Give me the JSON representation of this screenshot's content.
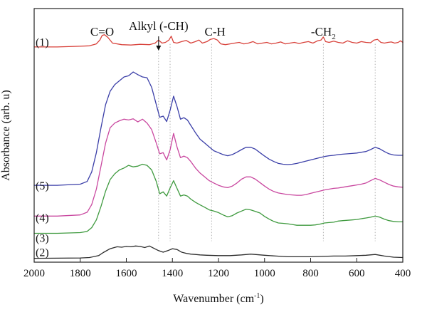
{
  "chart_data": {
    "type": "line",
    "xlabel": "Wavenumber (cm",
    "xlabel_sup": "-1",
    "xlabel_end": ")",
    "ylabel": "Absorbance (arb. u)",
    "xlim": [
      2000,
      400
    ],
    "x_reversed": true,
    "ylim": [
      0,
      6.6
    ],
    "x_ticks": [
      "2000",
      "1800",
      "1600",
      "1400",
      "1200",
      "1000",
      "800",
      "600",
      "400"
    ],
    "grid": false,
    "legend": "none",
    "annotations": [
      {
        "name": "annotation-c-o",
        "text": "C=O",
        "x": 1705
      },
      {
        "name": "annotation-alkyl",
        "text": "Alkyl (-CH)",
        "x": 1460,
        "arrow": true
      },
      {
        "name": "annotation-c-h",
        "text": "C-H",
        "x": 1215
      },
      {
        "name": "annotation-ch2",
        "text": "-CH",
        "sub": "2",
        "x": 745
      }
    ],
    "guide_lines_x": [
      1460,
      1410,
      1230,
      745,
      520
    ],
    "series": [
      {
        "name": "(2)",
        "color": "#2b2b2b",
        "label_y": 0.25,
        "x": [
          2000,
          1800,
          1760,
          1720,
          1700,
          1670,
          1640,
          1620,
          1600,
          1580,
          1560,
          1540,
          1520,
          1500,
          1480,
          1460,
          1440,
          1420,
          1400,
          1380,
          1360,
          1340,
          1320,
          1300,
          1280,
          1250,
          1200,
          1150,
          1100,
          1060,
          1000,
          950,
          900,
          850,
          800,
          750,
          700,
          650,
          600,
          560,
          520,
          480,
          440,
          400
        ],
        "y": [
          0.1,
          0.11,
          0.12,
          0.17,
          0.25,
          0.35,
          0.4,
          0.39,
          0.41,
          0.4,
          0.42,
          0.41,
          0.38,
          0.42,
          0.36,
          0.3,
          0.26,
          0.3,
          0.35,
          0.33,
          0.26,
          0.23,
          0.21,
          0.2,
          0.19,
          0.18,
          0.17,
          0.17,
          0.19,
          0.21,
          0.18,
          0.16,
          0.14,
          0.14,
          0.14,
          0.15,
          0.16,
          0.16,
          0.17,
          0.18,
          0.2,
          0.16,
          0.13,
          0.12
        ]
      },
      {
        "name": "(3)",
        "color": "#3f9a3f",
        "label_y": 0.62,
        "x": [
          2000,
          1900,
          1800,
          1770,
          1750,
          1730,
          1710,
          1690,
          1670,
          1650,
          1630,
          1610,
          1590,
          1570,
          1550,
          1530,
          1510,
          1490,
          1470,
          1455,
          1440,
          1425,
          1410,
          1395,
          1380,
          1365,
          1350,
          1335,
          1320,
          1300,
          1280,
          1260,
          1240,
          1220,
          1200,
          1180,
          1160,
          1140,
          1120,
          1100,
          1080,
          1060,
          1040,
          1020,
          1000,
          980,
          960,
          940,
          920,
          900,
          880,
          860,
          840,
          820,
          800,
          780,
          760,
          740,
          720,
          700,
          680,
          660,
          640,
          620,
          600,
          580,
          560,
          540,
          520,
          500,
          480,
          460,
          440,
          420,
          400
        ],
        "y": [
          0.75,
          0.75,
          0.77,
          0.8,
          0.9,
          1.1,
          1.45,
          1.85,
          2.15,
          2.3,
          2.4,
          2.45,
          2.52,
          2.48,
          2.5,
          2.55,
          2.52,
          2.4,
          2.1,
          1.78,
          1.83,
          1.72,
          1.93,
          2.12,
          1.92,
          1.72,
          1.75,
          1.72,
          1.64,
          1.56,
          1.49,
          1.43,
          1.36,
          1.33,
          1.29,
          1.23,
          1.18,
          1.21,
          1.28,
          1.33,
          1.38,
          1.36,
          1.32,
          1.28,
          1.19,
          1.12,
          1.06,
          1.02,
          1.01,
          1.0,
          0.98,
          0.96,
          0.96,
          0.96,
          0.96,
          0.97,
          0.99,
          1.02,
          1.03,
          1.04,
          1.07,
          1.08,
          1.09,
          1.1,
          1.11,
          1.13,
          1.15,
          1.17,
          1.2,
          1.17,
          1.12,
          1.08,
          1.06,
          1.05,
          1.05
        ]
      },
      {
        "name": "(4)",
        "color": "#c9479f",
        "label_y": 1.15,
        "x": [
          2000,
          1900,
          1800,
          1770,
          1750,
          1730,
          1710,
          1690,
          1670,
          1650,
          1630,
          1610,
          1590,
          1570,
          1550,
          1530,
          1510,
          1490,
          1470,
          1455,
          1440,
          1425,
          1410,
          1395,
          1380,
          1365,
          1350,
          1335,
          1320,
          1300,
          1280,
          1260,
          1240,
          1220,
          1200,
          1180,
          1160,
          1140,
          1120,
          1100,
          1080,
          1060,
          1040,
          1020,
          1000,
          980,
          960,
          940,
          920,
          900,
          880,
          860,
          840,
          820,
          800,
          780,
          760,
          740,
          720,
          700,
          680,
          660,
          640,
          620,
          600,
          580,
          560,
          540,
          520,
          500,
          480,
          460,
          440,
          420,
          400
        ],
        "y": [
          1.2,
          1.2,
          1.23,
          1.3,
          1.5,
          1.9,
          2.5,
          3.1,
          3.5,
          3.62,
          3.68,
          3.72,
          3.7,
          3.73,
          3.65,
          3.72,
          3.62,
          3.45,
          3.1,
          2.82,
          2.85,
          2.66,
          2.92,
          3.35,
          3.0,
          2.72,
          2.76,
          2.72,
          2.62,
          2.45,
          2.32,
          2.22,
          2.12,
          2.06,
          2.0,
          1.96,
          1.94,
          1.98,
          2.06,
          2.16,
          2.22,
          2.22,
          2.16,
          2.07,
          1.98,
          1.9,
          1.84,
          1.8,
          1.78,
          1.76,
          1.75,
          1.74,
          1.74,
          1.76,
          1.79,
          1.82,
          1.85,
          1.88,
          1.9,
          1.92,
          1.93,
          1.95,
          1.97,
          1.99,
          2.01,
          2.03,
          2.06,
          2.12,
          2.18,
          2.14,
          2.08,
          2.02,
          1.98,
          1.96,
          1.95
        ]
      },
      {
        "name": "(5)",
        "color": "#3b3fa8",
        "label_y": 1.98,
        "x": [
          2000,
          1900,
          1800,
          1770,
          1750,
          1730,
          1710,
          1690,
          1670,
          1650,
          1630,
          1610,
          1590,
          1570,
          1550,
          1530,
          1510,
          1490,
          1470,
          1455,
          1440,
          1425,
          1410,
          1395,
          1380,
          1365,
          1350,
          1335,
          1320,
          1300,
          1280,
          1260,
          1240,
          1220,
          1200,
          1180,
          1160,
          1140,
          1120,
          1100,
          1080,
          1060,
          1040,
          1020,
          1000,
          980,
          960,
          940,
          920,
          900,
          880,
          860,
          840,
          820,
          800,
          780,
          760,
          740,
          720,
          700,
          680,
          660,
          640,
          620,
          600,
          580,
          560,
          540,
          520,
          500,
          480,
          460,
          440,
          420,
          400
        ],
        "y": [
          2.0,
          2.0,
          2.03,
          2.1,
          2.35,
          2.85,
          3.5,
          4.1,
          4.45,
          4.62,
          4.72,
          4.82,
          4.85,
          4.95,
          4.88,
          4.82,
          4.8,
          4.55,
          4.1,
          3.77,
          3.8,
          3.66,
          3.95,
          4.32,
          4.05,
          3.72,
          3.76,
          3.7,
          3.56,
          3.37,
          3.2,
          3.1,
          3.0,
          2.9,
          2.85,
          2.8,
          2.77,
          2.8,
          2.86,
          2.93,
          2.99,
          2.99,
          2.94,
          2.85,
          2.76,
          2.68,
          2.62,
          2.57,
          2.55,
          2.54,
          2.55,
          2.57,
          2.6,
          2.63,
          2.66,
          2.69,
          2.72,
          2.75,
          2.77,
          2.78,
          2.8,
          2.81,
          2.82,
          2.83,
          2.84,
          2.86,
          2.88,
          2.93,
          2.99,
          2.95,
          2.88,
          2.82,
          2.79,
          2.78,
          2.78
        ]
      },
      {
        "name": "(1)",
        "color": "#d8413a",
        "label_y": 5.72,
        "x": [
          2000,
          1900,
          1800,
          1760,
          1730,
          1715,
          1705,
          1695,
          1680,
          1660,
          1620,
          1580,
          1540,
          1500,
          1475,
          1460,
          1445,
          1430,
          1415,
          1405,
          1395,
          1380,
          1360,
          1340,
          1320,
          1300,
          1285,
          1270,
          1250,
          1235,
          1220,
          1205,
          1190,
          1170,
          1150,
          1130,
          1110,
          1090,
          1070,
          1050,
          1030,
          1010,
          990,
          970,
          950,
          930,
          910,
          890,
          870,
          850,
          830,
          810,
          790,
          770,
          755,
          745,
          735,
          720,
          700,
          680,
          660,
          640,
          620,
          600,
          580,
          560,
          540,
          525,
          510,
          495,
          480,
          465,
          450,
          435,
          420,
          410,
          400
        ],
        "y": [
          5.6,
          5.6,
          5.62,
          5.63,
          5.68,
          5.78,
          5.9,
          5.92,
          5.85,
          5.7,
          5.66,
          5.65,
          5.67,
          5.66,
          5.7,
          5.78,
          5.7,
          5.72,
          5.78,
          5.88,
          5.72,
          5.7,
          5.74,
          5.77,
          5.7,
          5.74,
          5.78,
          5.7,
          5.74,
          5.8,
          5.82,
          5.78,
          5.68,
          5.66,
          5.68,
          5.7,
          5.72,
          5.68,
          5.7,
          5.74,
          5.68,
          5.7,
          5.72,
          5.68,
          5.7,
          5.73,
          5.68,
          5.7,
          5.72,
          5.69,
          5.72,
          5.74,
          5.7,
          5.76,
          5.78,
          5.86,
          5.74,
          5.72,
          5.75,
          5.72,
          5.7,
          5.76,
          5.72,
          5.7,
          5.74,
          5.72,
          5.71,
          5.78,
          5.8,
          5.72,
          5.7,
          5.72,
          5.73,
          5.7,
          5.72,
          5.76,
          5.72
        ]
      }
    ]
  }
}
